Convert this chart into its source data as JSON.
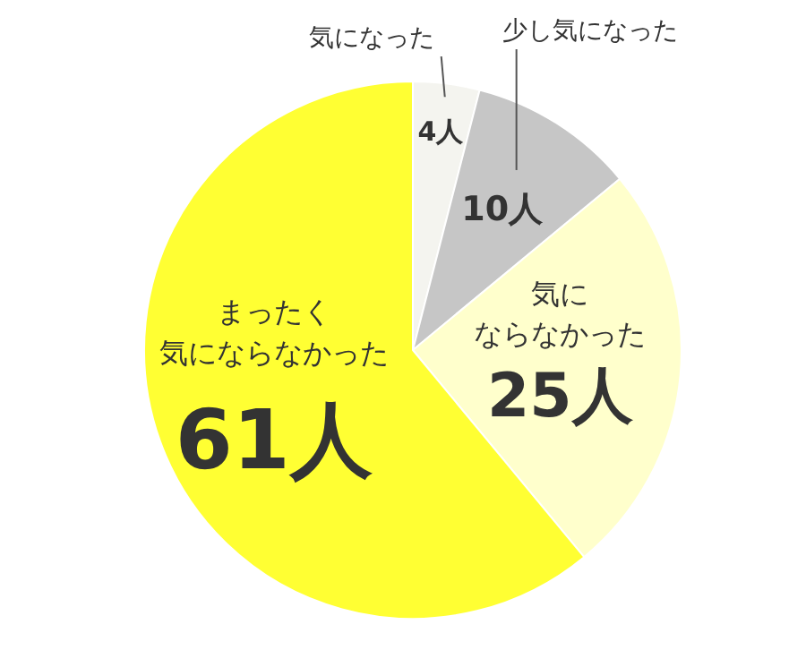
{
  "chart_data": {
    "type": "pie",
    "categories": [
      "気になった",
      "少し気になった",
      "気にならなかった",
      "まったく気にならなかった"
    ],
    "values": [
      4,
      10,
      25,
      61
    ],
    "value_labels": [
      "4人",
      "10人",
      "25人",
      "61人"
    ],
    "colors": [
      "#f4f4ef",
      "#c6c6c6",
      "#ffffcc",
      "#ffff33"
    ]
  }
}
